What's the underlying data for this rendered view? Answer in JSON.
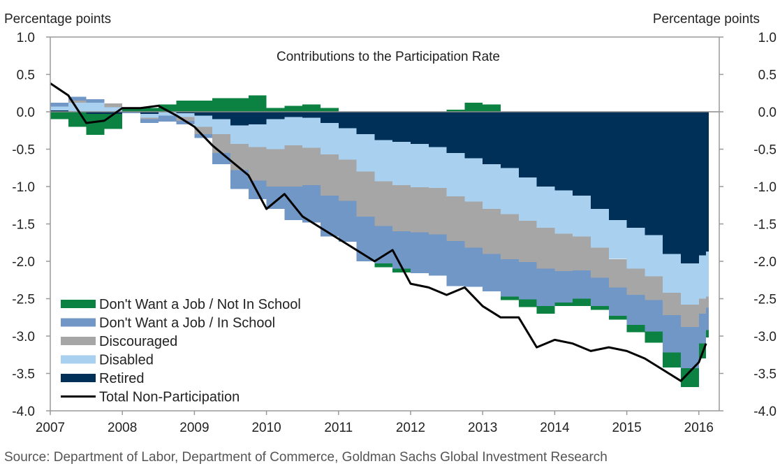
{
  "chart_data": {
    "type": "area",
    "title": "Contributions to the Participation Rate",
    "ylabel_left": "Percentage points",
    "ylabel_right": "Percentage points",
    "xlabel": "",
    "ylim": [
      -4.0,
      1.0
    ],
    "yticks": [
      "1.0",
      "0.5",
      "0.0",
      "-0.5",
      "-1.0",
      "-1.5",
      "-2.0",
      "-2.5",
      "-3.0",
      "-3.5",
      "-4.0"
    ],
    "ytick_values": [
      1.0,
      0.5,
      0.0,
      -0.5,
      -1.0,
      -1.5,
      -2.0,
      -2.5,
      -3.0,
      -3.5,
      -4.0
    ],
    "xlim": [
      2007,
      2016.4
    ],
    "xticks": [
      "2007",
      "2008",
      "2009",
      "2010",
      "2011",
      "2012",
      "2013",
      "2014",
      "2015",
      "2016"
    ],
    "xtick_values": [
      2007,
      2008,
      2009,
      2010,
      2011,
      2012,
      2013,
      2014,
      2015,
      2016
    ],
    "legend_position": "bottom-left",
    "grid": false,
    "stacking": "stacked bars (monthly steps) with total line overlay",
    "x": [
      2007.0,
      2007.25,
      2007.5,
      2007.75,
      2008.0,
      2008.25,
      2008.5,
      2008.75,
      2009.0,
      2009.25,
      2009.5,
      2009.75,
      2010.0,
      2010.25,
      2010.5,
      2010.75,
      2011.0,
      2011.25,
      2011.5,
      2011.75,
      2012.0,
      2012.25,
      2012.5,
      2012.75,
      2013.0,
      2013.25,
      2013.5,
      2013.75,
      2014.0,
      2014.25,
      2014.5,
      2014.75,
      2015.0,
      2015.25,
      2015.5,
      2015.75,
      2016.0,
      2016.1
    ],
    "series": [
      {
        "name": "Retired",
        "color": "#003057",
        "values": [
          0.02,
          0.0,
          -0.03,
          -0.03,
          0.0,
          -0.03,
          0.0,
          -0.02,
          -0.05,
          -0.1,
          -0.18,
          -0.17,
          -0.1,
          -0.07,
          -0.08,
          -0.15,
          -0.22,
          -0.3,
          -0.38,
          -0.4,
          -0.43,
          -0.47,
          -0.55,
          -0.62,
          -0.7,
          -0.75,
          -0.88,
          -1.0,
          -1.05,
          -1.12,
          -1.3,
          -1.45,
          -1.55,
          -1.65,
          -1.9,
          -2.03,
          -1.92,
          -1.87
        ]
      },
      {
        "name": "Disabled",
        "color": "#a9d0ef",
        "values": [
          0.05,
          0.12,
          0.12,
          0.06,
          0.0,
          -0.05,
          -0.05,
          -0.05,
          -0.15,
          -0.2,
          -0.25,
          -0.3,
          -0.4,
          -0.38,
          -0.4,
          -0.42,
          -0.42,
          -0.5,
          -0.55,
          -0.58,
          -0.58,
          -0.55,
          -0.58,
          -0.58,
          -0.6,
          -0.62,
          -0.58,
          -0.55,
          -0.58,
          -0.55,
          -0.52,
          -0.52,
          -0.55,
          -0.55,
          -0.52,
          -0.55,
          -0.58,
          -0.6
        ]
      },
      {
        "name": "Discouraged",
        "color": "#a6a6a6",
        "values": [
          0.0,
          0.03,
          0.0,
          0.05,
          0.0,
          -0.02,
          0.0,
          -0.05,
          -0.1,
          -0.25,
          -0.35,
          -0.45,
          -0.5,
          -0.55,
          -0.5,
          -0.55,
          -0.55,
          -0.6,
          -0.6,
          -0.62,
          -0.6,
          -0.62,
          -0.6,
          -0.62,
          -0.6,
          -0.6,
          -0.55,
          -0.55,
          -0.5,
          -0.45,
          -0.4,
          -0.38,
          -0.35,
          -0.32,
          -0.3,
          -0.3,
          -0.2,
          -0.15
        ]
      },
      {
        "name": "Don't Want a Job / In School",
        "color": "#7097c6",
        "values": [
          0.05,
          0.05,
          0.05,
          0.0,
          -0.02,
          -0.05,
          -0.08,
          -0.05,
          -0.05,
          -0.15,
          -0.25,
          -0.25,
          -0.3,
          -0.45,
          -0.5,
          -0.55,
          -0.55,
          -0.6,
          -0.5,
          -0.5,
          -0.55,
          -0.55,
          -0.6,
          -0.52,
          -0.5,
          -0.5,
          -0.5,
          -0.5,
          -0.42,
          -0.38,
          -0.38,
          -0.38,
          -0.4,
          -0.42,
          -0.5,
          -0.55,
          -0.4,
          -0.3
        ]
      },
      {
        "name": "Don't Want a Job / Not In School",
        "color": "#0b8241",
        "values": [
          -0.1,
          -0.2,
          -0.28,
          -0.2,
          0.05,
          0.05,
          0.1,
          0.15,
          0.15,
          0.18,
          0.18,
          0.22,
          0.05,
          0.08,
          0.1,
          0.05,
          0.0,
          0.0,
          -0.05,
          -0.05,
          0.0,
          0.0,
          0.03,
          0.12,
          0.1,
          -0.05,
          -0.1,
          -0.1,
          -0.05,
          -0.1,
          -0.05,
          -0.05,
          -0.1,
          -0.15,
          -0.2,
          -0.25,
          -0.2,
          -0.1
        ]
      }
    ],
    "total_line": {
      "name": "Total Non-Participation",
      "color": "#000000",
      "values": [
        0.38,
        0.22,
        -0.15,
        -0.12,
        0.05,
        0.05,
        0.08,
        -0.05,
        -0.2,
        -0.45,
        -0.65,
        -0.85,
        -1.3,
        -1.1,
        -1.4,
        -1.55,
        -1.7,
        -1.85,
        -2.0,
        -1.85,
        -2.3,
        -2.35,
        -2.45,
        -2.35,
        -2.6,
        -2.75,
        -2.75,
        -3.15,
        -3.05,
        -3.1,
        -3.2,
        -3.15,
        -3.2,
        -3.3,
        -3.45,
        -3.6,
        -3.35,
        -3.1
      ]
    }
  },
  "legend": [
    {
      "label": "Don't Want a Job / Not In School",
      "color": "#0b8241",
      "kind": "swatch"
    },
    {
      "label": "Don't Want a Job / In School",
      "color": "#7097c6",
      "kind": "swatch"
    },
    {
      "label": "Discouraged",
      "color": "#a6a6a6",
      "kind": "swatch"
    },
    {
      "label": "Disabled",
      "color": "#a9d0ef",
      "kind": "swatch"
    },
    {
      "label": "Retired",
      "color": "#003057",
      "kind": "swatch"
    },
    {
      "label": "Total Non-Participation",
      "color": "#000000",
      "kind": "line"
    }
  ],
  "source": "Source: Department of Labor, Department of Commerce, Goldman Sachs Global Investment Research"
}
